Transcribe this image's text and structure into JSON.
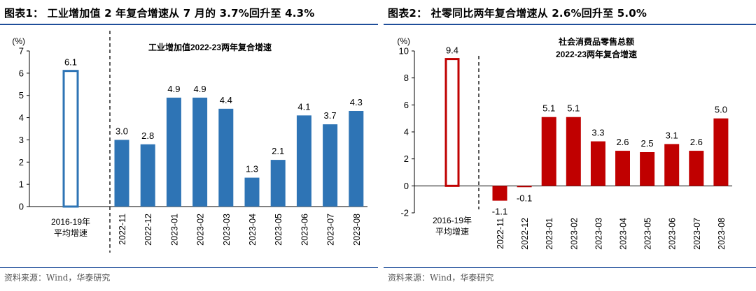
{
  "charts": [
    {
      "figure_title": "图表1：  工业增加值 2 年复合增速从 7 月的 3.7%回升至 4.3%",
      "source": "资料来源：Wind，华泰研究",
      "colors": {
        "bar": "#2e74b5",
        "rule": "#1f4e9a"
      }
    },
    {
      "figure_title": "图表2：  社零同比两年复合增速从 2.6%回升至 5.0%",
      "source": "资料来源：Wind，华泰研究",
      "colors": {
        "bar": "#c00000",
        "rule": "#1f4e9a"
      }
    }
  ],
  "chart_data": [
    {
      "type": "bar",
      "title": "工业增加值2022-23两年复合增速",
      "ylabel": "(%)",
      "ylim": [
        0,
        7
      ],
      "yticks": [
        0,
        1,
        2,
        3,
        4,
        5,
        6,
        7
      ],
      "baseline": {
        "label_lines": [
          "2016-19年",
          "平均增速"
        ],
        "value": 6.1,
        "value_label": "6.1"
      },
      "categories": [
        "2022-11",
        "2022-12",
        "2023-01",
        "2023-02",
        "2023-03",
        "2023-04",
        "2023-05",
        "2023-06",
        "2023-07",
        "2023-08"
      ],
      "values": [
        3.0,
        2.8,
        4.9,
        4.9,
        4.4,
        1.3,
        2.1,
        4.1,
        3.7,
        4.3
      ],
      "value_labels": [
        "3.0",
        "2.8",
        "4.9",
        "4.9",
        "4.4",
        "1.3",
        "2.1",
        "4.1",
        "3.7",
        "4.3"
      ]
    },
    {
      "type": "bar",
      "title_lines": [
        "社会消费品零售总额",
        "2022-23两年复合增速"
      ],
      "ylabel": "(%)",
      "ylim": [
        -2,
        10
      ],
      "yticks": [
        -2,
        0,
        2,
        4,
        6,
        8,
        10
      ],
      "baseline": {
        "label_lines": [
          "2016-19年",
          "平均增速"
        ],
        "value": 9.4,
        "value_label": "9.4"
      },
      "categories": [
        "2022-11",
        "2022-12",
        "2023-01",
        "2023-02",
        "2023-03",
        "2023-04",
        "2023-05",
        "2023-06",
        "2023-07",
        "2023-08"
      ],
      "values": [
        -1.1,
        -0.1,
        5.1,
        5.1,
        3.3,
        2.6,
        2.5,
        3.1,
        2.6,
        5.0
      ],
      "value_labels": [
        "-1.1",
        "-0.1",
        "5.1",
        "5.1",
        "3.3",
        "2.6",
        "2.5",
        "3.1",
        "2.6",
        "5.0"
      ]
    }
  ]
}
